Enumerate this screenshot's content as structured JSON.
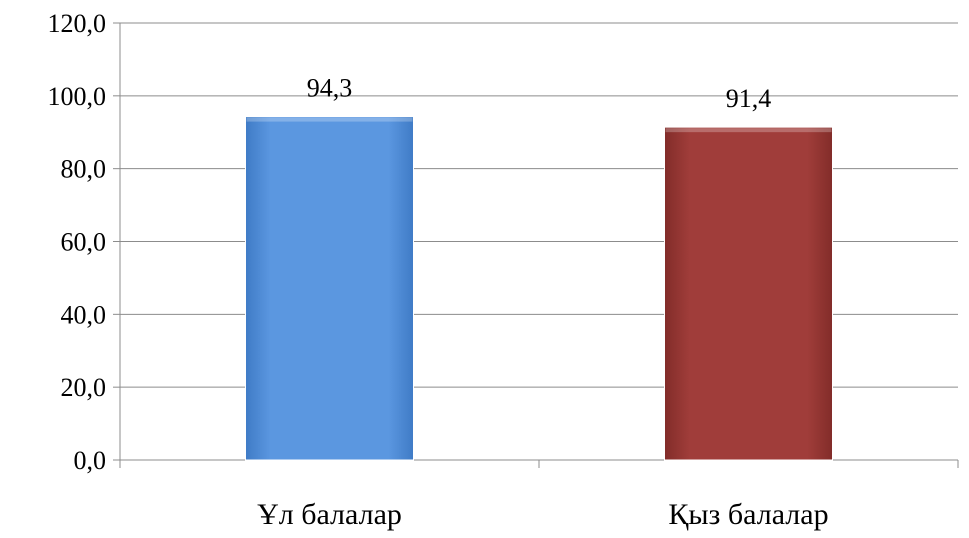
{
  "chart_data": {
    "type": "bar",
    "categories": [
      "Ұл балалар",
      "Қыз балалар"
    ],
    "values": [
      94.3,
      91.4
    ],
    "data_labels": [
      "94,3",
      "91,4"
    ],
    "colors": [
      "#5b97e0",
      "#a03d3a"
    ],
    "ylim": [
      0,
      120
    ],
    "yticks": [
      0,
      20,
      40,
      60,
      80,
      100,
      120
    ],
    "ytick_labels": [
      "0,0",
      "20,0",
      "40,0",
      "60,0",
      "80,0",
      "100,0",
      "120,0"
    ],
    "grid": true,
    "legend": "none"
  }
}
